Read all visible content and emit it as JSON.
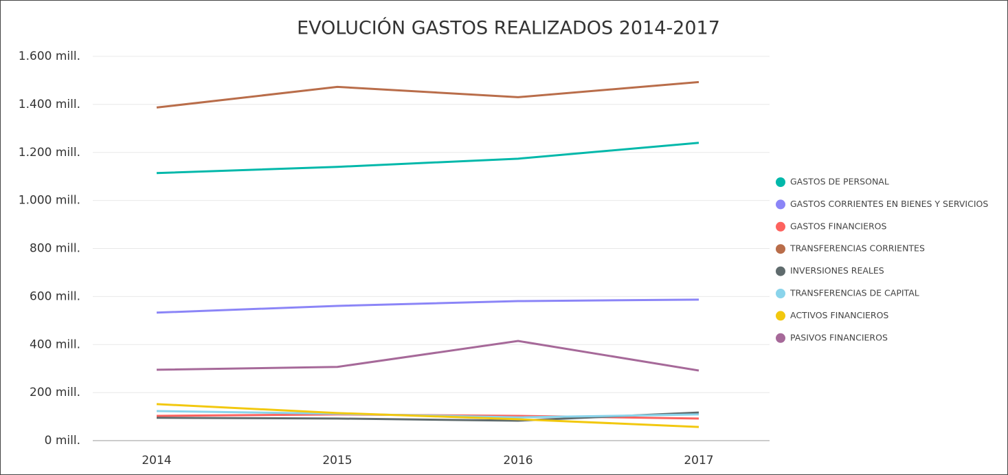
{
  "chart_data": {
    "type": "line",
    "title": "EVOLUCIÓN GASTOS REALIZADOS 2014-2017",
    "categories": [
      "2014",
      "2015",
      "2016",
      "2017"
    ],
    "series": [
      {
        "name": "GASTOS DE PERSONAL",
        "color": "#01b8aa",
        "values": [
          1114,
          1140,
          1174,
          1240
        ]
      },
      {
        "name": "GASTOS CORRIENTES EN BIENES Y SERVICIOS",
        "color": "#8b85f7",
        "values": [
          533,
          561,
          581,
          587
        ]
      },
      {
        "name": "GASTOS FINANCIEROS",
        "color": "#fd625e",
        "values": [
          103,
          109,
          103,
          92
        ]
      },
      {
        "name": "TRANSFERENCIAS CORRIENTES",
        "color": "#b96d4a",
        "values": [
          1387,
          1473,
          1430,
          1493
        ]
      },
      {
        "name": "INVERSIONES REALES",
        "color": "#5f6b6d",
        "values": [
          95,
          92,
          83,
          117
        ]
      },
      {
        "name": "TRANSFERENCIAS DE CAPITAL",
        "color": "#8ad4eb",
        "values": [
          123,
          112,
          97,
          109
        ]
      },
      {
        "name": "ACTIVOS FINANCIEROS",
        "color": "#f2c80f",
        "values": [
          152,
          115,
          89,
          57
        ]
      },
      {
        "name": "PASIVOS FINANCIEROS",
        "color": "#a66999",
        "values": [
          295,
          307,
          415,
          292
        ]
      }
    ],
    "ylim": [
      0,
      1600
    ],
    "yticks": [
      {
        "value": 0,
        "label": "0 mill."
      },
      {
        "value": 200,
        "label": "200 mill."
      },
      {
        "value": 400,
        "label": "400 mill."
      },
      {
        "value": 600,
        "label": "600 mill."
      },
      {
        "value": 800,
        "label": "800 mill."
      },
      {
        "value": 1000,
        "label": "1.000 mill."
      },
      {
        "value": 1200,
        "label": "1.200 mill."
      },
      {
        "value": 1400,
        "label": "1.400 mill."
      },
      {
        "value": 1600,
        "label": "1.600 mill."
      }
    ],
    "grid": true,
    "legend": "right"
  }
}
